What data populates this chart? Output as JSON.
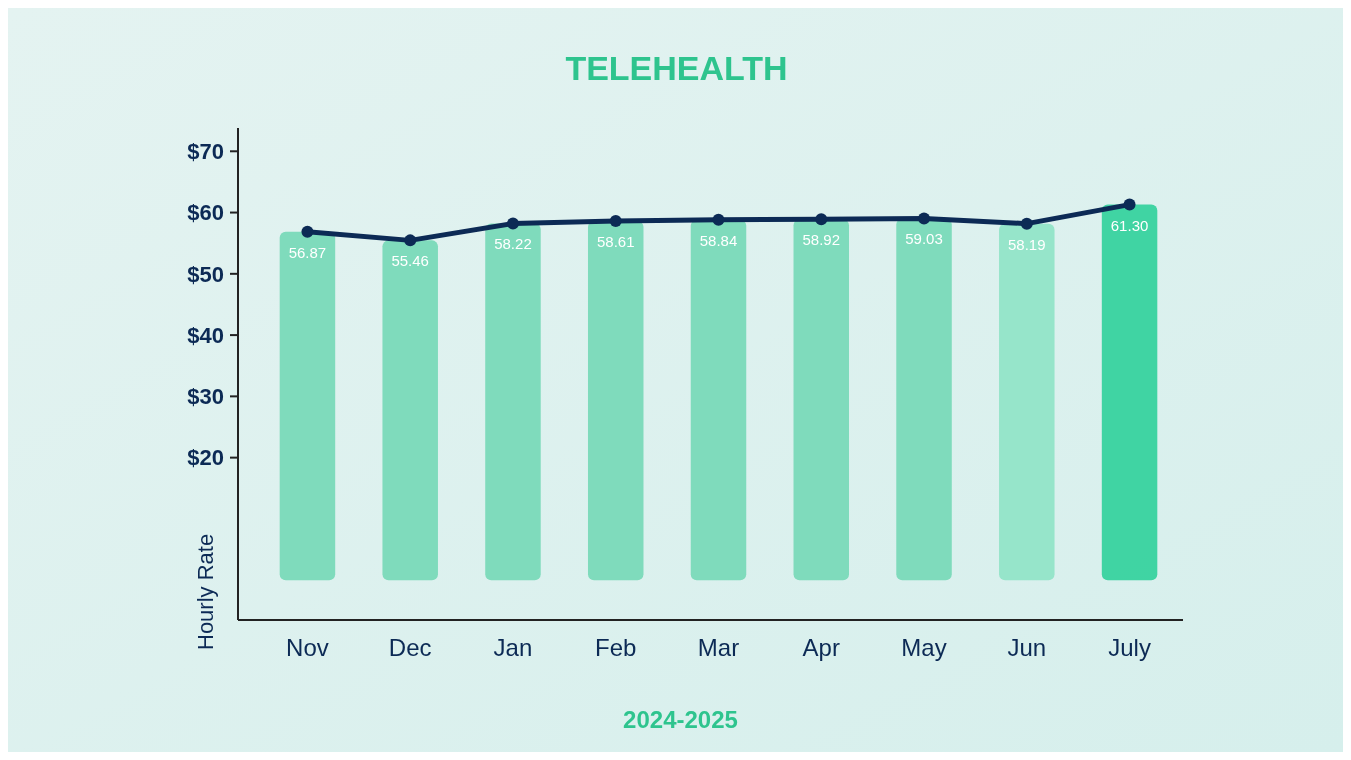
{
  "chart_data": {
    "type": "bar",
    "title": "TELEHEALTH",
    "xlabel": "2024-2025",
    "ylabel": "Hourly Rate",
    "categories": [
      "Nov",
      "Dec",
      "Jan",
      "Feb",
      "Mar",
      "Apr",
      "May",
      "Jun",
      "July"
    ],
    "series": [
      {
        "colors": [
          "#74d8b6",
          "#74d8b6",
          "#74d8b6",
          "#74d8b6",
          "#74d8b6",
          "#74d8b6",
          "#74d8b6",
          "#8ee3c5",
          "#2fd09a"
        ],
        "values": [
          56.87,
          55.46,
          58.22,
          58.61,
          58.84,
          58.92,
          59.03,
          58.19,
          61.3
        ],
        "value_labels": [
          "56.87",
          "55.46",
          "58.22",
          "58.61",
          "58.84",
          "58.92",
          "59.03",
          "58.19",
          "61.30"
        ]
      },
      {
        "type": "line",
        "color": "#0c2a55",
        "values": [
          56.87,
          55.46,
          58.22,
          58.61,
          58.84,
          58.92,
          59.03,
          58.19,
          61.3
        ],
        "marker": "circle"
      }
    ],
    "ylim": [
      -6.5,
      73.8
    ],
    "yticks": [
      {
        "value": 20,
        "label": "$20"
      },
      {
        "value": 30,
        "label": "$30"
      },
      {
        "value": 40,
        "label": "$40"
      },
      {
        "value": 50,
        "label": "$50"
      },
      {
        "value": 60,
        "label": "$60"
      },
      {
        "value": 70,
        "label": "$70"
      }
    ]
  }
}
